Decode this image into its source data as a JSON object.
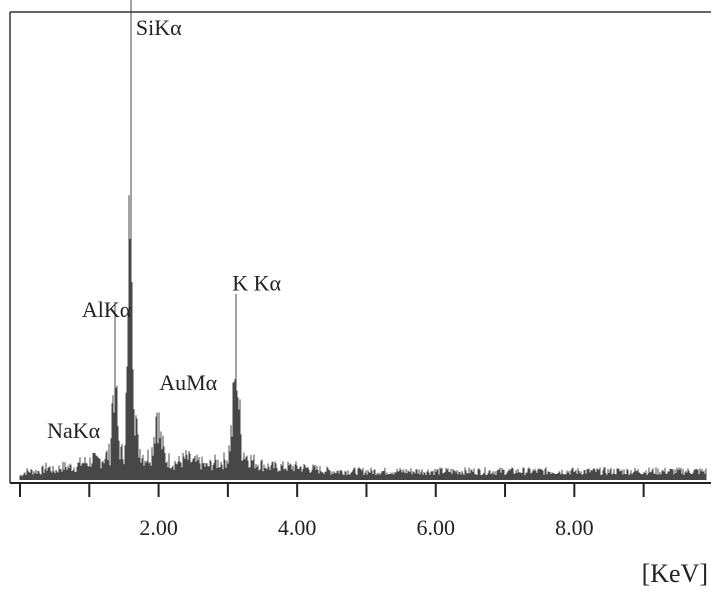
{
  "chart_data": {
    "type": "line",
    "title": "",
    "xlabel": "[KeV]",
    "ylabel": "",
    "xlim": [
      0.0,
      9.9
    ],
    "ylim": [
      0,
      1
    ],
    "grid": false,
    "x_ticks": [
      {
        "value": 0.0,
        "label": ""
      },
      {
        "value": 1.0,
        "label": ""
      },
      {
        "value": 2.0,
        "label": "2.00"
      },
      {
        "value": 3.0,
        "label": ""
      },
      {
        "value": 4.0,
        "label": "4.00"
      },
      {
        "value": 5.0,
        "label": ""
      },
      {
        "value": 6.0,
        "label": "6.00"
      },
      {
        "value": 7.0,
        "label": ""
      },
      {
        "value": 8.0,
        "label": "8.00"
      },
      {
        "value": 9.0,
        "label": ""
      }
    ],
    "peaks": [
      {
        "label": "NaKα",
        "x": 1.04,
        "y": 0.05
      },
      {
        "label": "AlKα",
        "x": 1.37,
        "y": 0.28
      },
      {
        "label": "SiKα",
        "x": 1.6,
        "y": 1.0
      },
      {
        "label": "AuMα",
        "x": 1.98,
        "y": 0.17
      },
      {
        "label": "K Kα",
        "x": 3.12,
        "y": 0.34
      }
    ],
    "series": [
      {
        "x": [
          0.0,
          0.1,
          0.2,
          0.3,
          0.4,
          0.5,
          0.6,
          0.7,
          0.8,
          0.9,
          1.0,
          1.05,
          1.1,
          1.2,
          1.3,
          1.33,
          1.37,
          1.41,
          1.45,
          1.5,
          1.55,
          1.58,
          1.6,
          1.62,
          1.65,
          1.7,
          1.8,
          1.9,
          1.95,
          1.98,
          2.02,
          2.1,
          2.2,
          2.3,
          2.4,
          2.5,
          2.6,
          2.7,
          2.8,
          2.9,
          3.0,
          3.06,
          3.1,
          3.12,
          3.15,
          3.2,
          3.3,
          3.4,
          3.6,
          3.8,
          4.0,
          4.5,
          5.0,
          5.5,
          6.0,
          6.5,
          7.0,
          7.5,
          8.0,
          8.5,
          9.0,
          9.5,
          9.9
        ],
        "y": [
          0.01,
          0.02,
          0.02,
          0.02,
          0.03,
          0.02,
          0.03,
          0.03,
          0.03,
          0.04,
          0.04,
          0.05,
          0.04,
          0.05,
          0.06,
          0.17,
          0.28,
          0.12,
          0.06,
          0.06,
          0.24,
          0.56,
          1.0,
          0.56,
          0.2,
          0.08,
          0.05,
          0.06,
          0.13,
          0.17,
          0.1,
          0.05,
          0.04,
          0.04,
          0.05,
          0.04,
          0.04,
          0.03,
          0.04,
          0.04,
          0.05,
          0.12,
          0.24,
          0.34,
          0.2,
          0.07,
          0.05,
          0.04,
          0.03,
          0.03,
          0.03,
          0.02,
          0.02,
          0.02,
          0.02,
          0.02,
          0.02,
          0.02,
          0.02,
          0.02,
          0.02,
          0.02,
          0.02
        ]
      }
    ]
  }
}
